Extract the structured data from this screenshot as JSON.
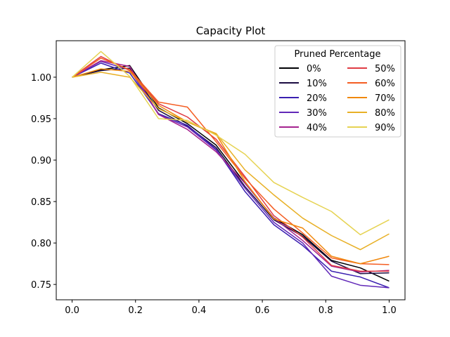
{
  "chart_data": {
    "type": "line",
    "title": "Capacity Plot",
    "xlabel": "",
    "ylabel": "",
    "xlim": [
      -0.05,
      1.05
    ],
    "ylim": [
      0.7315,
      1.044
    ],
    "xticks": [
      0.0,
      0.2,
      0.4,
      0.6,
      0.8,
      1.0
    ],
    "xtick_labels": [
      "0.0",
      "0.2",
      "0.4",
      "0.6",
      "0.8",
      "1.0"
    ],
    "yticks": [
      0.75,
      0.8,
      0.85,
      0.9,
      0.95,
      1.0
    ],
    "ytick_labels": [
      "0.75",
      "0.80",
      "0.85",
      "0.90",
      "0.95",
      "1.00"
    ],
    "grid": false,
    "legend": {
      "title": "Pruned Percentage",
      "placement": "top-right",
      "columns": 2
    },
    "x": [
      0.0,
      0.0909,
      0.1818,
      0.2727,
      0.3636,
      0.4545,
      0.5455,
      0.6364,
      0.7273,
      0.8182,
      0.9091,
      1.0
    ],
    "series": [
      {
        "name": "0%",
        "color": "#000004",
        "values": [
          1.0,
          1.009,
          1.014,
          0.963,
          0.944,
          0.918,
          0.872,
          0.83,
          0.81,
          0.779,
          0.77,
          0.754
        ]
      },
      {
        "name": "10%",
        "color": "#1b0c41",
        "values": [
          1.0,
          1.008,
          1.011,
          0.96,
          0.941,
          0.915,
          0.868,
          0.828,
          0.808,
          0.778,
          0.763,
          0.764
        ]
      },
      {
        "name": "20%",
        "color": "#3a1fb0",
        "values": [
          1.0,
          1.017,
          1.005,
          0.956,
          0.942,
          0.913,
          0.862,
          0.822,
          0.797,
          0.766,
          0.759,
          0.746
        ]
      },
      {
        "name": "30%",
        "color": "#6128b8",
        "values": [
          1.0,
          1.019,
          1.009,
          0.955,
          0.94,
          0.912,
          0.866,
          0.825,
          0.8,
          0.76,
          0.749,
          0.746
        ]
      },
      {
        "name": "40%",
        "color": "#a5238f",
        "values": [
          1.0,
          1.02,
          1.013,
          0.955,
          0.937,
          0.91,
          0.872,
          0.83,
          0.803,
          0.772,
          0.765,
          0.767
        ]
      },
      {
        "name": "50%",
        "color": "#e03c44",
        "values": [
          1.0,
          1.025,
          1.008,
          0.968,
          0.952,
          0.925,
          0.88,
          0.833,
          0.807,
          0.773,
          0.766,
          0.766
        ]
      },
      {
        "name": "60%",
        "color": "#f45d22",
        "values": [
          1.0,
          1.023,
          1.009,
          0.97,
          0.964,
          0.922,
          0.878,
          0.841,
          0.812,
          0.782,
          0.775,
          0.774
        ]
      },
      {
        "name": "70%",
        "color": "#f0880c",
        "values": [
          1.0,
          1.01,
          1.007,
          0.966,
          0.946,
          0.931,
          0.874,
          0.829,
          0.818,
          0.784,
          0.775,
          0.784
        ]
      },
      {
        "name": "80%",
        "color": "#e8b026",
        "values": [
          1.0,
          1.006,
          1.0,
          0.962,
          0.946,
          0.932,
          0.888,
          0.858,
          0.83,
          0.809,
          0.792,
          0.811
        ]
      },
      {
        "name": "90%",
        "color": "#e6d353",
        "values": [
          1.0,
          1.031,
          1.001,
          0.95,
          0.948,
          0.93,
          0.907,
          0.873,
          0.855,
          0.838,
          0.81,
          0.828
        ]
      }
    ]
  }
}
